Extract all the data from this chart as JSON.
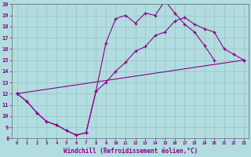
{
  "xlabel": "Windchill (Refroidissement éolien,°C)",
  "background_color": "#b2dde0",
  "grid_color": "#9bbfc2",
  "line_color": "#880088",
  "xlim": [
    -0.5,
    23.5
  ],
  "ylim": [
    8,
    20
  ],
  "xticks": [
    0,
    1,
    2,
    3,
    4,
    5,
    6,
    7,
    8,
    9,
    10,
    11,
    12,
    13,
    14,
    15,
    16,
    17,
    18,
    19,
    20,
    21,
    22,
    23
  ],
  "yticks": [
    8,
    9,
    10,
    11,
    12,
    13,
    14,
    15,
    16,
    17,
    18,
    19,
    20
  ],
  "line1_x": [
    0,
    1,
    2,
    3,
    4,
    5,
    6,
    7,
    8,
    9,
    10,
    11,
    12,
    13,
    14,
    15,
    16,
    17,
    18,
    19,
    20
  ],
  "line1_y": [
    12.0,
    11.3,
    10.3,
    9.5,
    9.2,
    8.7,
    8.3,
    8.5,
    12.2,
    16.5,
    18.7,
    19.0,
    18.3,
    19.2,
    19.0,
    20.3,
    19.2,
    18.2,
    17.5,
    16.3,
    15.0
  ],
  "line2_x": [
    0,
    1,
    2,
    3,
    4,
    5,
    6,
    7,
    8,
    9,
    10,
    11,
    12,
    13,
    14,
    15,
    16,
    17,
    18,
    19,
    20,
    21,
    22,
    23
  ],
  "line2_y": [
    12.0,
    11.3,
    10.3,
    9.5,
    9.2,
    8.7,
    8.3,
    8.5,
    12.2,
    13.0,
    14.0,
    14.8,
    15.8,
    16.2,
    17.2,
    17.5,
    18.5,
    18.8,
    18.2,
    17.8,
    17.5,
    16.0,
    15.5,
    15.0
  ],
  "line3_x": [
    0,
    23
  ],
  "line3_y": [
    12.0,
    15.0
  ]
}
